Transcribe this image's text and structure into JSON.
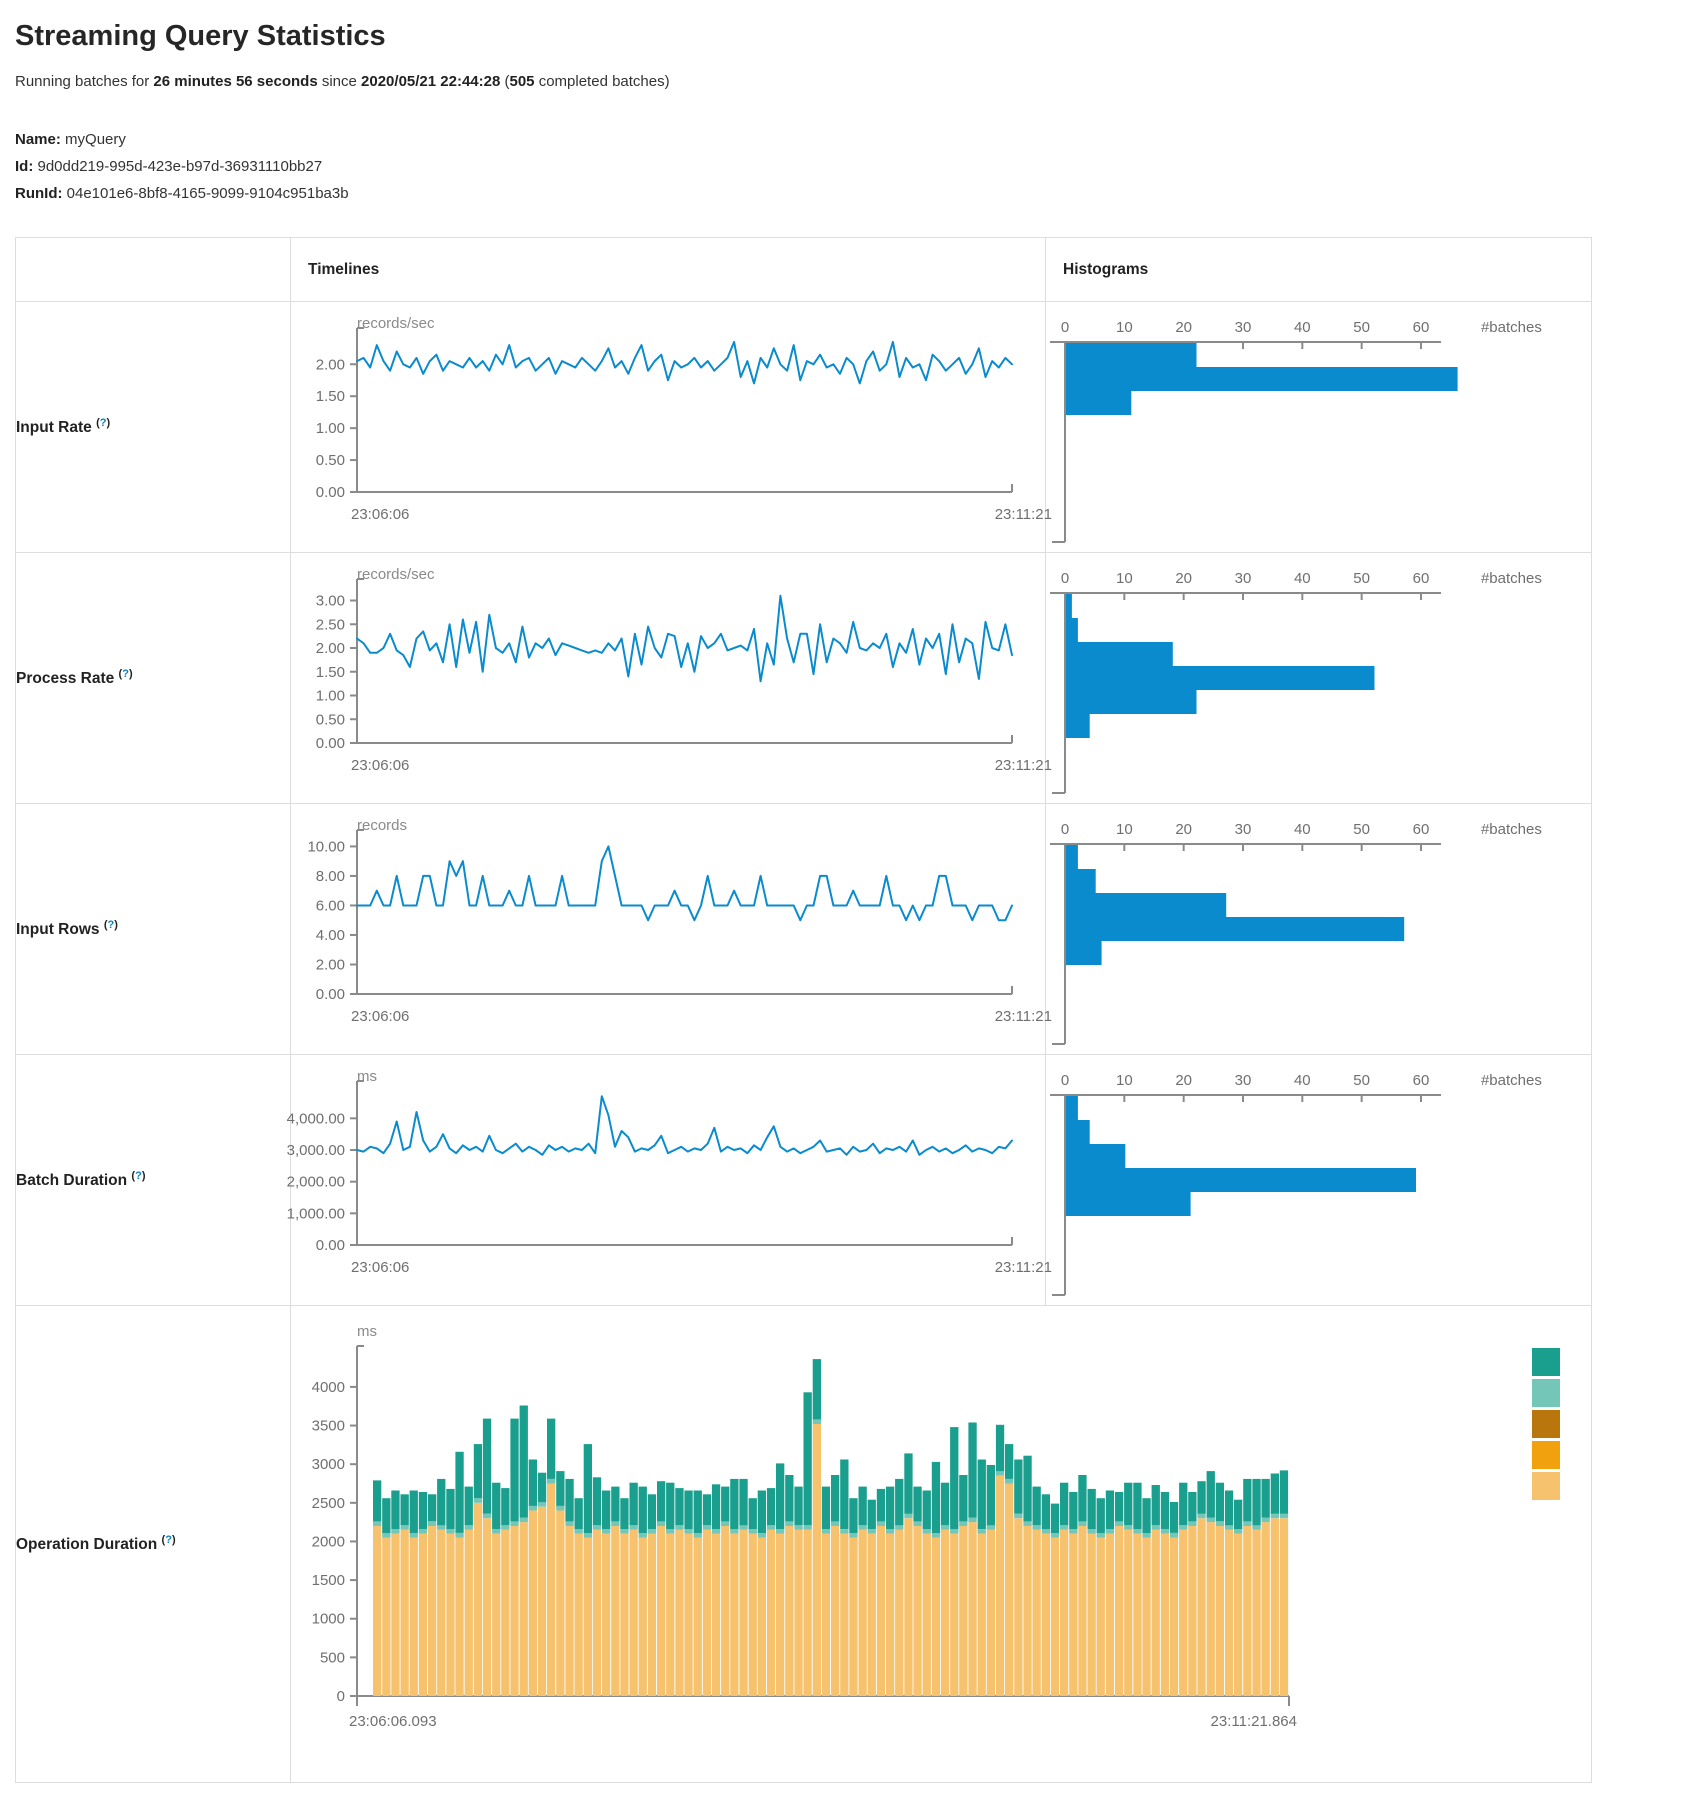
{
  "page": {
    "title": "Streaming Query Statistics",
    "subtitle": {
      "prefix": "Running batches for ",
      "duration": "26 minutes 56 seconds",
      "mid": " since ",
      "start_time": "2020/05/21 22:44:28",
      "paren": " (",
      "count": "505",
      "suffix": " completed batches)"
    },
    "meta": {
      "name_label": "Name:",
      "name_value": " myQuery",
      "id_label": "Id:",
      "id_value": " 9d0dd219-995d-423e-b97d-36931110bb27",
      "runid_label": "RunId:",
      "runid_value": " 04e101e6-8bf8-4165-9099-9104c951ba3b"
    }
  },
  "table": {
    "header_timelines": "Timelines",
    "header_histograms": "Histograms",
    "rows": [
      {
        "label": "Input Rate ",
        "help_open": "(",
        "help_q": "?",
        "help_close": ")"
      },
      {
        "label": "Process Rate ",
        "help_open": "(",
        "help_q": "?",
        "help_close": ")"
      },
      {
        "label": "Input Rows ",
        "help_open": "(",
        "help_q": "?",
        "help_close": ")"
      },
      {
        "label": "Batch Duration ",
        "help_open": "(",
        "help_q": "?",
        "help_close": ")"
      },
      {
        "label": "Operation Duration ",
        "help_open": "(",
        "help_q": "?",
        "help_close": ")"
      }
    ]
  },
  "colors": {
    "line_blue": "#0a8bce",
    "bar_blue": "#0a8bce",
    "axis_gray": "#8a8a8a",
    "legend": [
      "#1a9e8d",
      "#74c6b8",
      "#b8760d",
      "#f2a10e",
      "#f7c26e"
    ],
    "stack_bottom": "#f7c26e",
    "stack_sliver": "#74c6b8",
    "stack_top": "#1a9e8d"
  },
  "chart_data": [
    {
      "type": "line",
      "name": "input-rate-timeline",
      "unit": "records/sec",
      "x_start": "23:06:06",
      "x_end": "23:11:21",
      "ylim": [
        0,
        2.38
      ],
      "yticks": [
        {
          "v": 2,
          "label": "2.00"
        },
        {
          "v": 1.5,
          "label": "1.50"
        },
        {
          "v": 1,
          "label": "1.00"
        },
        {
          "v": 0.5,
          "label": "0.50"
        },
        {
          "v": 0,
          "label": "0.00"
        }
      ],
      "values": [
        2.05,
        2.1,
        1.95,
        2.3,
        2.05,
        1.9,
        2.2,
        2.0,
        1.95,
        2.1,
        1.85,
        2.05,
        2.15,
        1.9,
        2.05,
        2.0,
        1.95,
        2.1,
        1.95,
        2.05,
        1.9,
        2.15,
        2.0,
        2.3,
        1.95,
        2.05,
        2.1,
        1.9,
        2.0,
        2.1,
        1.85,
        2.05,
        2.0,
        1.95,
        2.1,
        2.0,
        1.9,
        2.05,
        2.25,
        1.95,
        2.05,
        1.85,
        2.1,
        2.3,
        1.9,
        2.05,
        2.15,
        1.75,
        2.05,
        1.95,
        2.0,
        2.1,
        1.95,
        2.05,
        1.9,
        2.0,
        2.1,
        2.35,
        1.8,
        2.05,
        1.7,
        2.1,
        1.95,
        2.25,
        2.0,
        1.9,
        2.3,
        1.75,
        2.05,
        2.0,
        2.15,
        1.95,
        2.0,
        1.85,
        2.1,
        2.0,
        1.7,
        2.05,
        2.2,
        1.9,
        2.0,
        2.35,
        1.8,
        2.1,
        1.95,
        2.0,
        1.75,
        2.15,
        2.05,
        1.9,
        2.0,
        2.1,
        1.85,
        2.0,
        2.25,
        1.8,
        2.05,
        1.95,
        2.1,
        2.0
      ],
      "histogram": {
        "xticks": [
          0,
          10,
          20,
          30,
          40,
          50,
          60
        ],
        "xlabel": "#batches",
        "bars": [
          22,
          66,
          11
        ]
      }
    },
    {
      "type": "line",
      "name": "process-rate-timeline",
      "unit": "records/sec",
      "x_start": "23:06:06",
      "x_end": "23:11:21",
      "ylim": [
        0,
        3.2
      ],
      "yticks": [
        {
          "v": 3,
          "label": "3.00"
        },
        {
          "v": 2.5,
          "label": "2.50"
        },
        {
          "v": 2,
          "label": "2.00"
        },
        {
          "v": 1.5,
          "label": "1.50"
        },
        {
          "v": 1,
          "label": "1.00"
        },
        {
          "v": 0.5,
          "label": "0.50"
        },
        {
          "v": 0,
          "label": "0.00"
        }
      ],
      "values": [
        2.2,
        2.1,
        1.9,
        1.9,
        2.0,
        2.3,
        1.95,
        1.85,
        1.6,
        2.2,
        2.35,
        1.95,
        2.1,
        1.7,
        2.5,
        1.6,
        2.6,
        1.9,
        2.55,
        1.5,
        2.7,
        2.0,
        1.9,
        2.1,
        1.7,
        2.45,
        1.8,
        2.1,
        2.0,
        2.2,
        1.85,
        2.1,
        2.05,
        2.0,
        1.95,
        1.9,
        1.95,
        1.9,
        2.1,
        1.95,
        2.2,
        1.4,
        2.3,
        1.65,
        2.45,
        2.0,
        1.8,
        2.3,
        2.25,
        1.6,
        2.1,
        1.5,
        2.25,
        2.0,
        2.1,
        2.3,
        1.95,
        2.0,
        2.05,
        1.95,
        2.4,
        1.3,
        2.1,
        1.65,
        3.1,
        2.2,
        1.7,
        2.3,
        2.3,
        1.45,
        2.5,
        1.7,
        2.2,
        2.1,
        1.9,
        2.55,
        2.0,
        1.95,
        2.1,
        2.0,
        2.3,
        1.6,
        2.1,
        1.9,
        2.4,
        1.65,
        2.2,
        2.0,
        2.3,
        1.45,
        2.5,
        1.7,
        2.2,
        2.1,
        1.35,
        2.55,
        2.0,
        1.95,
        2.5,
        1.85
      ],
      "histogram": {
        "xticks": [
          0,
          10,
          20,
          30,
          40,
          50,
          60
        ],
        "xlabel": "#batches",
        "bars": [
          1,
          2,
          18,
          52,
          22,
          4
        ]
      }
    },
    {
      "type": "line",
      "name": "input-rows-timeline",
      "unit": "records",
      "x_start": "23:06:06",
      "x_end": "23:11:21",
      "ylim": [
        0,
        10.3
      ],
      "yticks": [
        {
          "v": 10,
          "label": "10.00"
        },
        {
          "v": 8,
          "label": "8.00"
        },
        {
          "v": 6,
          "label": "6.00"
        },
        {
          "v": 4,
          "label": "4.00"
        },
        {
          "v": 2,
          "label": "2.00"
        },
        {
          "v": 0,
          "label": "0.00"
        }
      ],
      "values": [
        6,
        6,
        6,
        7,
        6,
        6,
        8,
        6,
        6,
        6,
        8,
        8,
        6,
        6,
        9,
        8,
        9,
        6,
        6,
        8,
        6,
        6,
        6,
        7,
        6,
        6,
        8,
        6,
        6,
        6,
        6,
        8,
        6,
        6,
        6,
        6,
        6,
        9,
        10,
        8,
        6,
        6,
        6,
        6,
        5,
        6,
        6,
        6,
        7,
        6,
        6,
        5,
        6,
        8,
        6,
        6,
        6,
        7,
        6,
        6,
        6,
        8,
        6,
        6,
        6,
        6,
        6,
        5,
        6,
        6,
        8,
        8,
        6,
        6,
        6,
        7,
        6,
        6,
        6,
        6,
        8,
        6,
        6,
        5,
        6,
        5,
        6,
        6,
        8,
        8,
        6,
        6,
        6,
        5,
        6,
        6,
        6,
        5,
        5,
        6
      ],
      "histogram": {
        "xticks": [
          0,
          10,
          20,
          30,
          40,
          50,
          60
        ],
        "xlabel": "#batches",
        "bars": [
          2,
          5,
          27,
          57,
          6
        ]
      }
    },
    {
      "type": "line",
      "name": "batch-duration-timeline",
      "unit": "ms",
      "x_start": "23:06:06",
      "x_end": "23:11:21",
      "ylim": [
        0,
        4800
      ],
      "yticks": [
        {
          "v": 4000,
          "label": "4,000.00"
        },
        {
          "v": 3000,
          "label": "3,000.00"
        },
        {
          "v": 2000,
          "label": "2,000.00"
        },
        {
          "v": 1000,
          "label": "1,000.00"
        },
        {
          "v": 0,
          "label": "0.00"
        }
      ],
      "values": [
        3000,
        2950,
        3100,
        3050,
        2900,
        3200,
        3900,
        3000,
        3100,
        4200,
        3300,
        2950,
        3100,
        3500,
        3050,
        2900,
        3150,
        3000,
        3100,
        2950,
        3450,
        3000,
        2900,
        3050,
        3200,
        2950,
        3100,
        3000,
        2850,
        3150,
        3000,
        3100,
        2950,
        3050,
        3000,
        3200,
        2900,
        4700,
        4100,
        3100,
        3600,
        3400,
        2950,
        3050,
        3000,
        3150,
        3450,
        2900,
        3000,
        3100,
        2950,
        3050,
        3000,
        3200,
        3700,
        2950,
        3100,
        3000,
        3050,
        2900,
        3150,
        3000,
        3400,
        3750,
        3100,
        2950,
        3050,
        2900,
        3000,
        3100,
        3300,
        2950,
        3000,
        3050,
        2850,
        3100,
        2950,
        3000,
        3200,
        2900,
        3050,
        3000,
        3100,
        2950,
        3300,
        2850,
        3000,
        3100,
        2950,
        3050,
        2900,
        3000,
        3150,
        2950,
        3050,
        3000,
        2900,
        3100,
        3050,
        3300
      ],
      "histogram": {
        "xticks": [
          0,
          10,
          20,
          30,
          40,
          50,
          60
        ],
        "xlabel": "#batches",
        "bars": [
          2,
          4,
          10,
          59,
          21
        ]
      }
    },
    {
      "type": "stacked-bar",
      "name": "operation-duration",
      "unit": "ms",
      "x_start": "23:06:06.093",
      "x_end": "23:11:21.864",
      "ylim": [
        0,
        4400
      ],
      "yticks": [
        {
          "v": 4000,
          "label": "4000"
        },
        {
          "v": 3500,
          "label": "3500"
        },
        {
          "v": 3000,
          "label": "3000"
        },
        {
          "v": 2500,
          "label": "2500"
        },
        {
          "v": 2000,
          "label": "2000"
        },
        {
          "v": 1500,
          "label": "1500"
        },
        {
          "v": 1000,
          "label": "1000"
        },
        {
          "v": 500,
          "label": "500"
        },
        {
          "v": 0,
          "label": "0"
        }
      ],
      "legend_swatch_count": 5,
      "sliver_constant": 60,
      "bottom_values": [
        2200,
        2050,
        2100,
        2150,
        2050,
        2100,
        2200,
        2150,
        2100,
        2050,
        2150,
        2500,
        2300,
        2100,
        2150,
        2200,
        2250,
        2400,
        2450,
        2750,
        2400,
        2200,
        2100,
        2050,
        2150,
        2100,
        2200,
        2100,
        2150,
        2050,
        2100,
        2200,
        2100,
        2150,
        2100,
        2050,
        2150,
        2100,
        2200,
        2100,
        2150,
        2100,
        2050,
        2150,
        2100,
        2200,
        2150,
        2150,
        3520,
        2100,
        2200,
        2100,
        2050,
        2150,
        2100,
        2200,
        2100,
        2150,
        2300,
        2200,
        2100,
        2050,
        2150,
        2100,
        2200,
        2250,
        2100,
        2150,
        2850,
        2750,
        2300,
        2200,
        2150,
        2100,
        2050,
        2150,
        2100,
        2200,
        2100,
        2050,
        2100,
        2200,
        2150,
        2100,
        2050,
        2150,
        2100,
        2050,
        2150,
        2200,
        2300,
        2250,
        2200,
        2150,
        2100,
        2200,
        2150,
        2250,
        2300,
        2300
      ],
      "top_values": [
        530,
        450,
        500,
        400,
        550,
        480,
        350,
        600,
        520,
        1050,
        500,
        700,
        1230,
        600,
        480,
        1330,
        1450,
        600,
        380,
        780,
        450,
        550,
        400,
        1150,
        620,
        500,
        450,
        400,
        550,
        600,
        450,
        520,
        600,
        480,
        500,
        550,
        400,
        580,
        450,
        650,
        600,
        400,
        550,
        480,
        850,
        600,
        500,
        1720,
        780,
        550,
        600,
        900,
        450,
        500,
        380,
        420,
        550,
        600,
        780,
        450,
        500,
        920,
        550,
        1320,
        600,
        1230,
        900,
        780,
        600,
        450,
        700,
        850,
        500,
        450,
        380,
        550,
        480,
        600,
        520,
        450,
        500,
        380,
        550,
        600,
        450,
        520,
        480,
        400,
        550,
        380,
        420,
        600,
        500,
        450,
        380,
        550,
        600,
        500,
        520,
        560
      ]
    }
  ]
}
